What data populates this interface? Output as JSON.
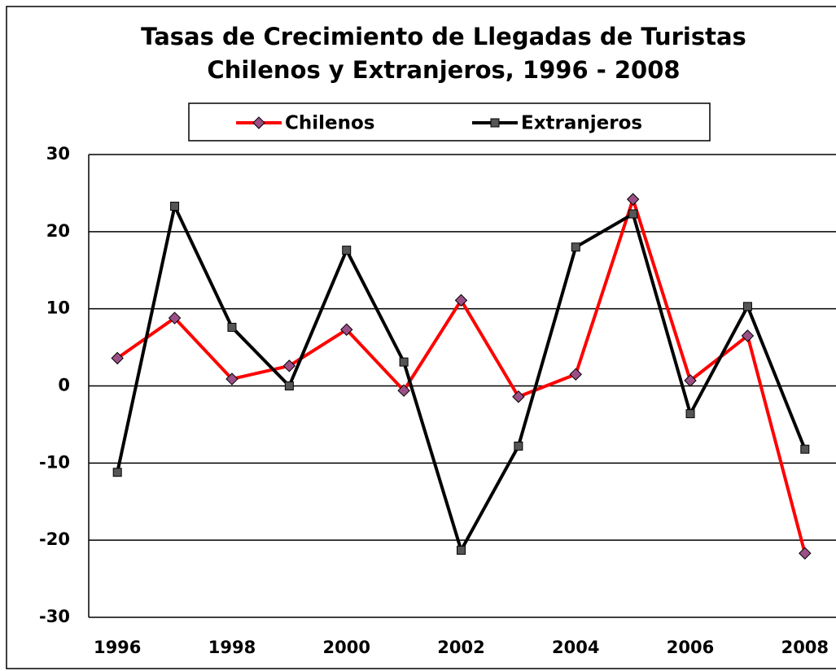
{
  "chart_data": {
    "type": "line",
    "title": [
      "Tasas de Crecimiento de Llegadas de Turistas",
      "Chilenos y Extranjeros, 1996 - 2008"
    ],
    "x": [
      1996,
      1997,
      1998,
      1999,
      2000,
      2001,
      2002,
      2003,
      2004,
      2005,
      2006,
      2007,
      2008
    ],
    "xlim": [
      1995.5,
      2008.5
    ],
    "xticks": [
      1996,
      1998,
      2000,
      2002,
      2004,
      2006,
      2008
    ],
    "ylim": [
      -30,
      30
    ],
    "yticks": [
      -30,
      -20,
      -10,
      0,
      10,
      20,
      30
    ],
    "grid": true,
    "legend": "top",
    "series": [
      {
        "name": "Chilenos",
        "color": "#ff0000",
        "marker_color": "#9b4f86",
        "marker": "diamond",
        "values": [
          3.6,
          8.8,
          0.9,
          2.6,
          7.3,
          -0.6,
          11.1,
          -1.4,
          1.5,
          24.2,
          0.7,
          6.5,
          -21.7
        ]
      },
      {
        "name": "Extranjeros",
        "color": "#000000",
        "marker_color": "#555555",
        "marker": "square",
        "values": [
          -11.2,
          23.3,
          7.6,
          0.0,
          17.6,
          3.1,
          -21.3,
          -7.8,
          18.0,
          22.3,
          -3.6,
          10.3,
          -8.2
        ]
      }
    ]
  }
}
